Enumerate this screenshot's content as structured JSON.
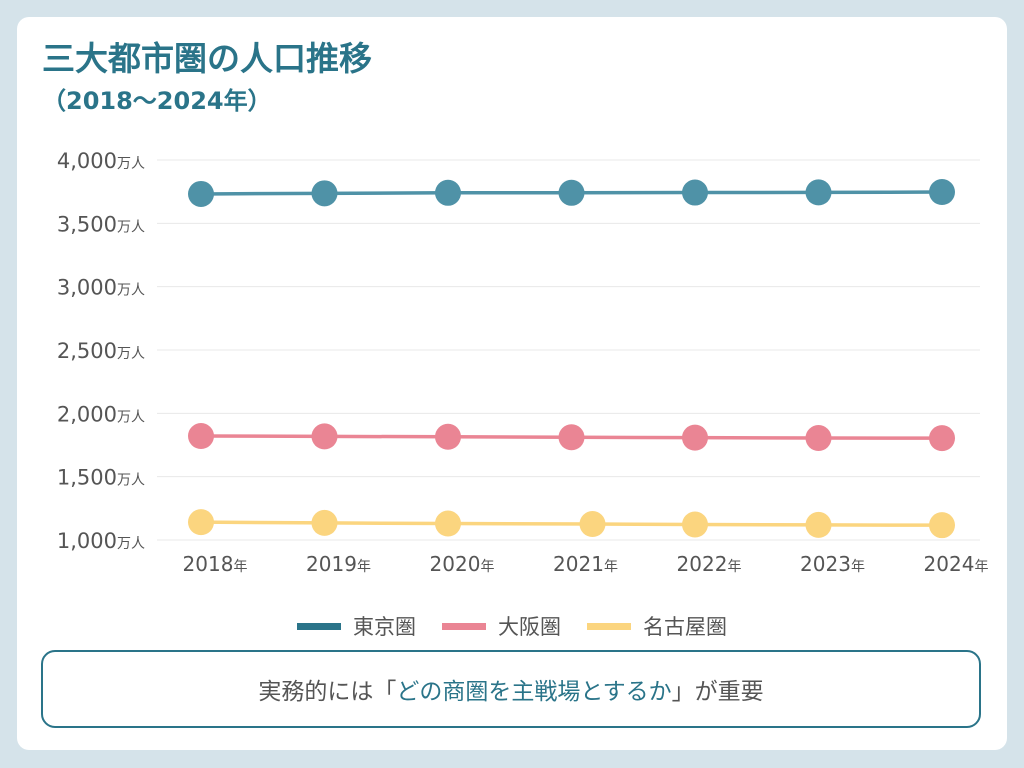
{
  "header": {
    "title": "三大都市圏の人口推移",
    "subtitle": "（2018〜2024年）"
  },
  "colors": {
    "title": "#2a7489",
    "tokyo": "#4f92a7",
    "tokyo_legend": "#2a7489",
    "osaka": "#ea8594",
    "nagoya": "#fbd57f",
    "grid": "#e8e8e8",
    "tick_text": "#555555",
    "background": "#d5e3ea"
  },
  "chart_data": {
    "type": "line",
    "title": "三大都市圏の人口推移（2018〜2024年）",
    "xlabel": "",
    "ylabel": "",
    "x": [
      "2018",
      "2019",
      "2020",
      "2021",
      "2022",
      "2023",
      "2024"
    ],
    "x_tick_labels": [
      {
        "num": "2018",
        "unit": "年"
      },
      {
        "num": "2019",
        "unit": "年"
      },
      {
        "num": "2020",
        "unit": "年"
      },
      {
        "num": "2021",
        "unit": "年"
      },
      {
        "num": "2022",
        "unit": "年"
      },
      {
        "num": "2023",
        "unit": "年"
      },
      {
        "num": "2024",
        "unit": "年"
      }
    ],
    "y_ticks": [
      1000,
      1500,
      2000,
      2500,
      3000,
      3500,
      4000
    ],
    "y_tick_labels": [
      {
        "num": "1,000",
        "unit": "万人"
      },
      {
        "num": "1,500",
        "unit": "万人"
      },
      {
        "num": "2,000",
        "unit": "万人"
      },
      {
        "num": "2,500",
        "unit": "万人"
      },
      {
        "num": "3,000",
        "unit": "万人"
      },
      {
        "num": "3,500",
        "unit": "万人"
      },
      {
        "num": "4,000",
        "unit": "万人"
      }
    ],
    "ylim": [
      1000,
      4000
    ],
    "grid": true,
    "legend_position": "bottom-center",
    "unit": "万人",
    "series": [
      {
        "key": "tokyo",
        "name": "東京圏",
        "values": [
          3732,
          3737,
          3741,
          3741,
          3743,
          3744,
          3747
        ]
      },
      {
        "key": "osaka",
        "name": "大阪圏",
        "values": [
          1821,
          1818,
          1815,
          1811,
          1808,
          1805,
          1804
        ]
      },
      {
        "key": "nagoya",
        "name": "名古屋圏",
        "values": [
          1141,
          1135,
          1130,
          1126,
          1122,
          1119,
          1117
        ]
      }
    ]
  },
  "legend": {
    "items": [
      {
        "label": "東京圏"
      },
      {
        "label": "大阪圏"
      },
      {
        "label": "名古屋圏"
      }
    ]
  },
  "note": {
    "prefix": "実務的には「",
    "highlight": "どの商圏を主戦場とするか",
    "suffix": "」が重要"
  }
}
